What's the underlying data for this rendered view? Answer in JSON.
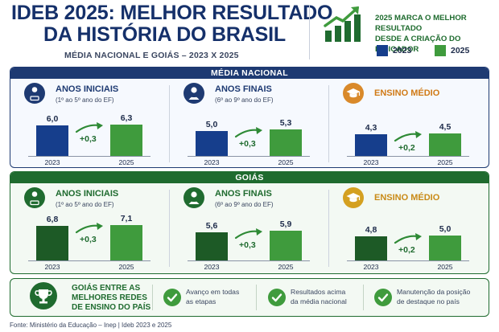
{
  "header": {
    "title_line1": "IDEB 2025: MELHOR RESULTADO",
    "title_line2": "DA HISTÓRIA DO BRASIL",
    "subtitle": "MÉDIA NACIONAL E GOIÁS – 2023 X 2025",
    "note_line1": "2025 MARCA O MELHOR RESULTADO",
    "note_line2": "DESDE A CRIAÇÃO DO INDICADOR",
    "icon": "growth-chart-icon"
  },
  "legend": [
    {
      "label": "2023",
      "color": "#163e8c"
    },
    {
      "label": "2025",
      "color": "#3f9b3d"
    }
  ],
  "colors": {
    "navy": "#1e3a72",
    "bar_2023_national": "#163e8c",
    "bar_2023_goias": "#1d5a26",
    "bar_2025": "#3f9b3d",
    "orange": "#d9892a",
    "goias_green": "#1f6b2f"
  },
  "chart_data": [
    {
      "type": "bar",
      "title": "MÉDIA NACIONAL",
      "groups": [
        {
          "title": "ANOS INICIAIS",
          "range": "(1º ao 5º ano do EF)",
          "icon": "student-reading-icon",
          "categories": [
            "2023",
            "2025"
          ],
          "values": [
            6.0,
            6.3
          ],
          "labels": [
            "6,0",
            "6,3"
          ],
          "delta": "+0,3"
        },
        {
          "title": "ANOS FINAIS",
          "range": "(6º ao 9º ano do EF)",
          "icon": "student-icon",
          "categories": [
            "2023",
            "2025"
          ],
          "values": [
            5.0,
            5.3
          ],
          "labels": [
            "5,0",
            "5,3"
          ],
          "delta": "+0,3"
        },
        {
          "title": "ENSINO MÉDIO",
          "range": "",
          "icon": "graduation-cap-icon",
          "categories": [
            "2023",
            "2025"
          ],
          "values": [
            4.3,
            4.5
          ],
          "labels": [
            "4,3",
            "4,5"
          ],
          "delta": "+0,2"
        }
      ]
    },
    {
      "type": "bar",
      "title": "GOIÁS",
      "groups": [
        {
          "title": "ANOS INICIAIS",
          "range": "(1º ao 5º ano do EF)",
          "icon": "student-reading-icon",
          "categories": [
            "2023",
            "2025"
          ],
          "values": [
            6.8,
            7.1
          ],
          "labels": [
            "6,8",
            "7,1"
          ],
          "delta": "+0,3"
        },
        {
          "title": "ANOS FINAIS",
          "range": "(6º ao 9º ano do EF)",
          "icon": "student-icon",
          "categories": [
            "2023",
            "2025"
          ],
          "values": [
            5.6,
            5.9
          ],
          "labels": [
            "5,6",
            "5,9"
          ],
          "delta": "+0,3"
        },
        {
          "title": "ENSINO MÉDIO",
          "range": "",
          "icon": "graduation-cap-icon",
          "categories": [
            "2023",
            "2025"
          ],
          "values": [
            4.8,
            5.0
          ],
          "labels": [
            "4,8",
            "5,0"
          ],
          "delta": "+0,2"
        }
      ]
    }
  ],
  "footer": {
    "title_line1": "GOIÁS ENTRE AS",
    "title_line2": "MELHORES REDES",
    "title_line3": "DE ENSINO DO PAÍS",
    "items": [
      {
        "line1": "Avanço em todas",
        "line2": "as etapas"
      },
      {
        "line1": "Resultados acima",
        "line2": "da média nacional"
      },
      {
        "line1": "Manutenção da posição",
        "line2": "de destaque no país"
      }
    ]
  },
  "source": "Fonte: Ministério da Educação – Inep  |  Ideb 2023 e 2025"
}
